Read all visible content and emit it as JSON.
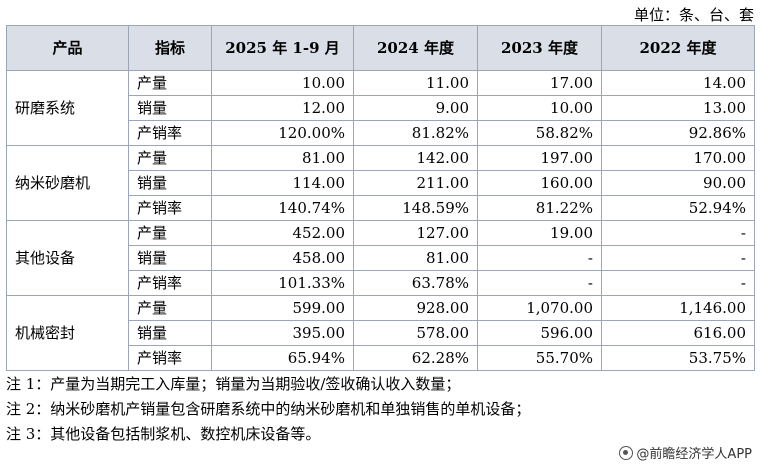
{
  "unit_label": "单位：条、台、套",
  "headers": [
    "产品",
    "指标",
    "2025 年 1-9 月",
    "2024 年度",
    "2023 年度",
    "2022 年度"
  ],
  "groups": [
    {
      "product": "研磨系统",
      "rows": [
        {
          "metric": "产量",
          "values": [
            "10.00",
            "11.00",
            "17.00",
            "14.00"
          ]
        },
        {
          "metric": "销量",
          "values": [
            "12.00",
            "9.00",
            "10.00",
            "13.00"
          ]
        },
        {
          "metric": "产销率",
          "values": [
            "120.00%",
            "81.82%",
            "58.82%",
            "92.86%"
          ]
        }
      ]
    },
    {
      "product": "纳米砂磨机",
      "rows": [
        {
          "metric": "产量",
          "values": [
            "81.00",
            "142.00",
            "197.00",
            "170.00"
          ]
        },
        {
          "metric": "销量",
          "values": [
            "114.00",
            "211.00",
            "160.00",
            "90.00"
          ]
        },
        {
          "metric": "产销率",
          "values": [
            "140.74%",
            "148.59%",
            "81.22%",
            "52.94%"
          ]
        }
      ]
    },
    {
      "product": "其他设备",
      "rows": [
        {
          "metric": "产量",
          "values": [
            "452.00",
            "127.00",
            "19.00",
            "-"
          ]
        },
        {
          "metric": "销量",
          "values": [
            "458.00",
            "81.00",
            "-",
            "-"
          ]
        },
        {
          "metric": "产销率",
          "values": [
            "101.33%",
            "63.78%",
            "-",
            "-"
          ]
        }
      ]
    },
    {
      "product": "机械密封",
      "rows": [
        {
          "metric": "产量",
          "values": [
            "599.00",
            "928.00",
            "1,070.00",
            "1,146.00"
          ]
        },
        {
          "metric": "销量",
          "values": [
            "395.00",
            "578.00",
            "596.00",
            "616.00"
          ]
        },
        {
          "metric": "产销率",
          "values": [
            "65.94%",
            "62.28%",
            "55.70%",
            "53.75%"
          ]
        }
      ]
    }
  ],
  "notes": [
    "注 1：产量为当期完工入库量；销量为当期验收/签收确认收入数量；",
    "注 2：纳米砂磨机产销量包含研磨系统中的纳米砂磨机和单独销售的单机设备；",
    "注 3：其他设备包括制浆机、数控机床设备等。"
  ],
  "brand": "@前瞻经济学人APP",
  "icons": {
    "brand": "brand-logo-icon"
  }
}
